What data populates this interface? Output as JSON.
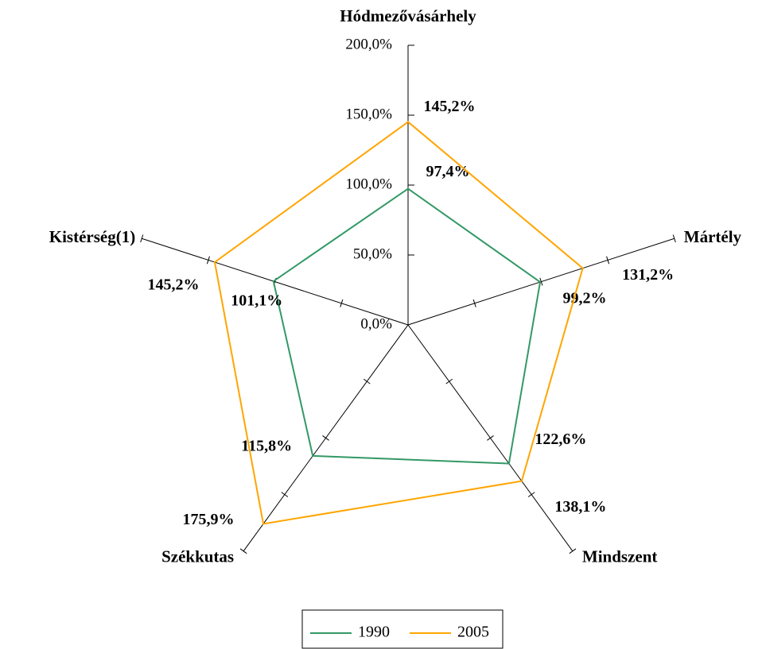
{
  "chart_data": {
    "type": "radar",
    "categories": [
      "Hódmezővásárhely",
      "Mártély",
      "Mindszent",
      "Székkutas",
      "Kistérség(1)"
    ],
    "series": [
      {
        "name": "1990",
        "color": "#339966",
        "values": [
          97.4,
          99.2,
          122.6,
          115.8,
          101.1
        ],
        "value_labels": [
          "97,4%",
          "99,2%",
          "122,6%",
          "115,8%",
          "101,1%"
        ]
      },
      {
        "name": "2005",
        "color": "#ffa500",
        "values": [
          145.2,
          131.2,
          138.1,
          175.9,
          145.2
        ],
        "value_labels": [
          "145,2%",
          "131,2%",
          "138,1%",
          "175,9%",
          "145,2%"
        ]
      }
    ],
    "ylim": [
      0,
      200
    ],
    "yticks": [
      {
        "value": 0,
        "label": "0,0%"
      },
      {
        "value": 50,
        "label": "50,0%"
      },
      {
        "value": 100,
        "label": "100,0%"
      },
      {
        "value": 150,
        "label": "150,0%"
      },
      {
        "value": 200,
        "label": "200,0%"
      }
    ],
    "legend": "bottom"
  }
}
